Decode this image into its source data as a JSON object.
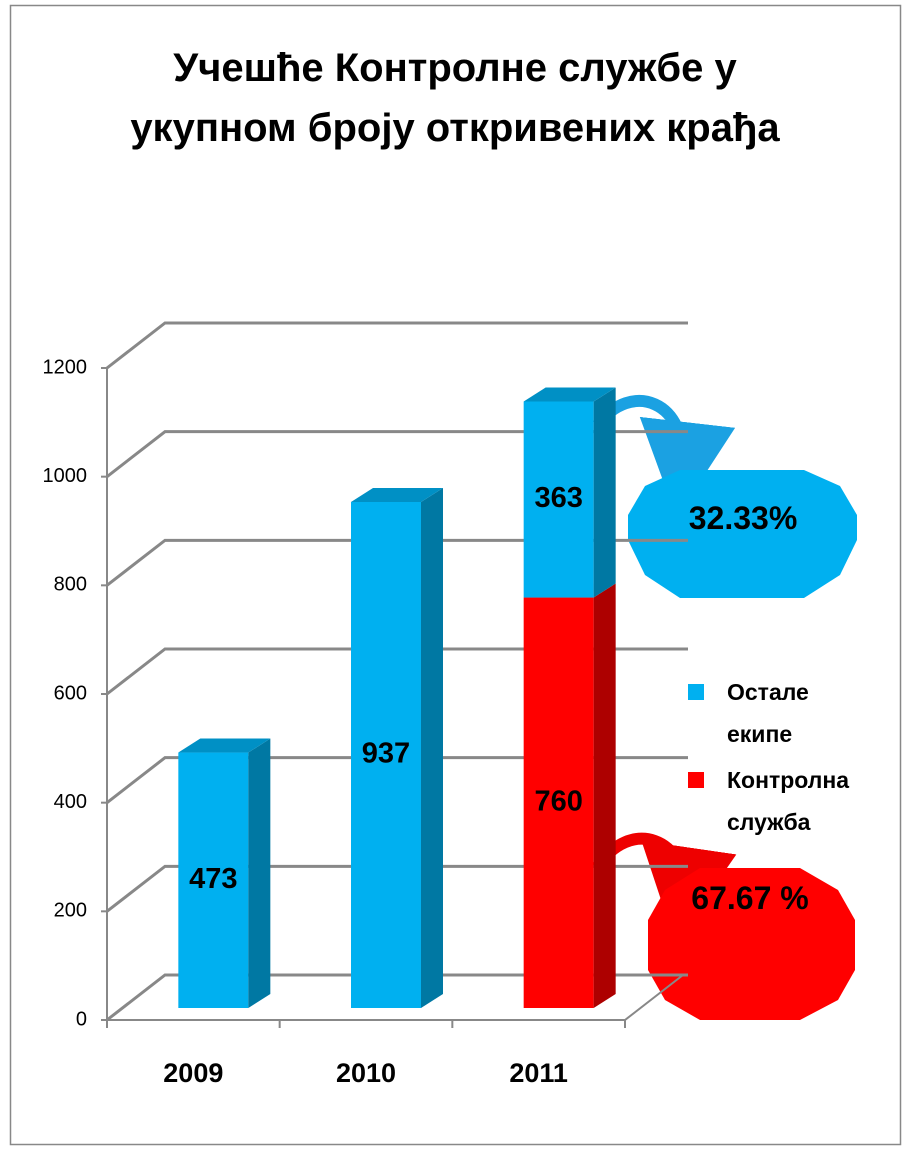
{
  "chart_data": {
    "type": "bar",
    "stacked": true,
    "title": "Учешће Контролне службе у укупном броју откривених крађа",
    "categories": [
      "2009",
      "2010",
      "2011"
    ],
    "series": [
      {
        "name": "Остале екипе",
        "color": "#00b0f0",
        "values": [
          473,
          937,
          363
        ]
      },
      {
        "name": "Контролна служба",
        "color": "#ff0000",
        "values": [
          null,
          null,
          760
        ]
      }
    ],
    "ylim": [
      0,
      1200
    ],
    "yticks": [
      0,
      200,
      400,
      600,
      800,
      1000,
      1200
    ],
    "grid": true,
    "legend": "right",
    "annotations": [
      "32.33%",
      "67.67 %"
    ]
  }
}
